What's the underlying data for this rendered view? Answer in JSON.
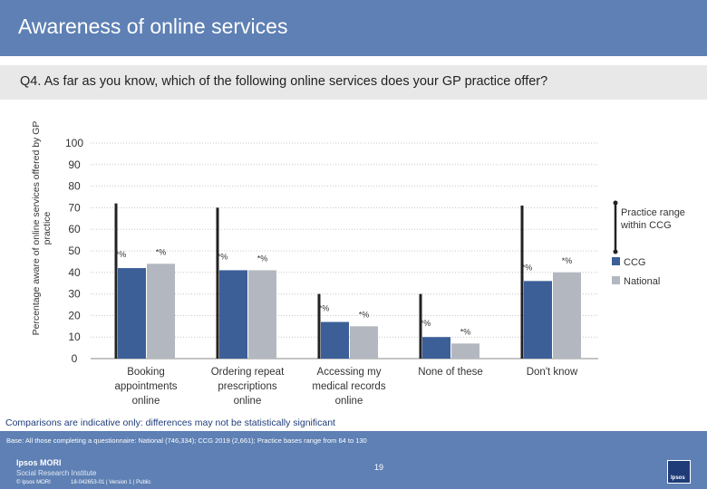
{
  "header": {
    "title": "Awareness of online services"
  },
  "question": "Q4. As far as you know, which of the following online services does your GP practice offer?",
  "chart_data": {
    "type": "bar",
    "ylabel": "Percentage aware of online services offered by GP practice",
    "ylim": [
      0,
      100
    ],
    "yticks": [
      0,
      10,
      20,
      30,
      40,
      50,
      60,
      70,
      80,
      90,
      100
    ],
    "grid": true,
    "categories": [
      "Booking appointments online",
      "Ordering repeat prescriptions online",
      "Accessing my medical records online",
      "None of these",
      "Don't know"
    ],
    "category_lines": [
      [
        "Booking",
        "appointments",
        "online"
      ],
      [
        "Ordering repeat",
        "prescriptions",
        "online"
      ],
      [
        "Accessing my",
        "medical records",
        "online"
      ],
      [
        "None of these"
      ],
      [
        "Don't know"
      ]
    ],
    "series": [
      {
        "name": "CCG",
        "color": "#3c5f98",
        "values": [
          42,
          41,
          17,
          10,
          36
        ],
        "labels": [
          "*%",
          "*%",
          "*%",
          "*%",
          "*%"
        ]
      },
      {
        "name": "National",
        "color": "#b3b8c0",
        "values": [
          44,
          41,
          15,
          7,
          40
        ],
        "labels": [
          "*%",
          "*%",
          "*%",
          "*%",
          "*%"
        ]
      }
    ],
    "practice_range": {
      "name": "Practice range within CCG",
      "min": [
        0,
        0,
        0,
        0,
        0
      ],
      "max": [
        72,
        70,
        30,
        30,
        71
      ]
    },
    "legend": {
      "position": "right",
      "range_label": "Practice range within CCG"
    }
  },
  "note": "Comparisons are indicative only: differences may not be statistically significant",
  "footer": {
    "base": "Base: All those completing a questionnaire: National (746,334); CCG 2019 (2,661); Practice bases range from 64 to 130",
    "logo_line1": "Ipsos MORI",
    "logo_line2": "Social Research Institute",
    "copyright": "© Ipsos MORI",
    "ref": "18-042653-01 | Version 1 | Public",
    "page": "19",
    "corner_logo": "Ipsos"
  }
}
